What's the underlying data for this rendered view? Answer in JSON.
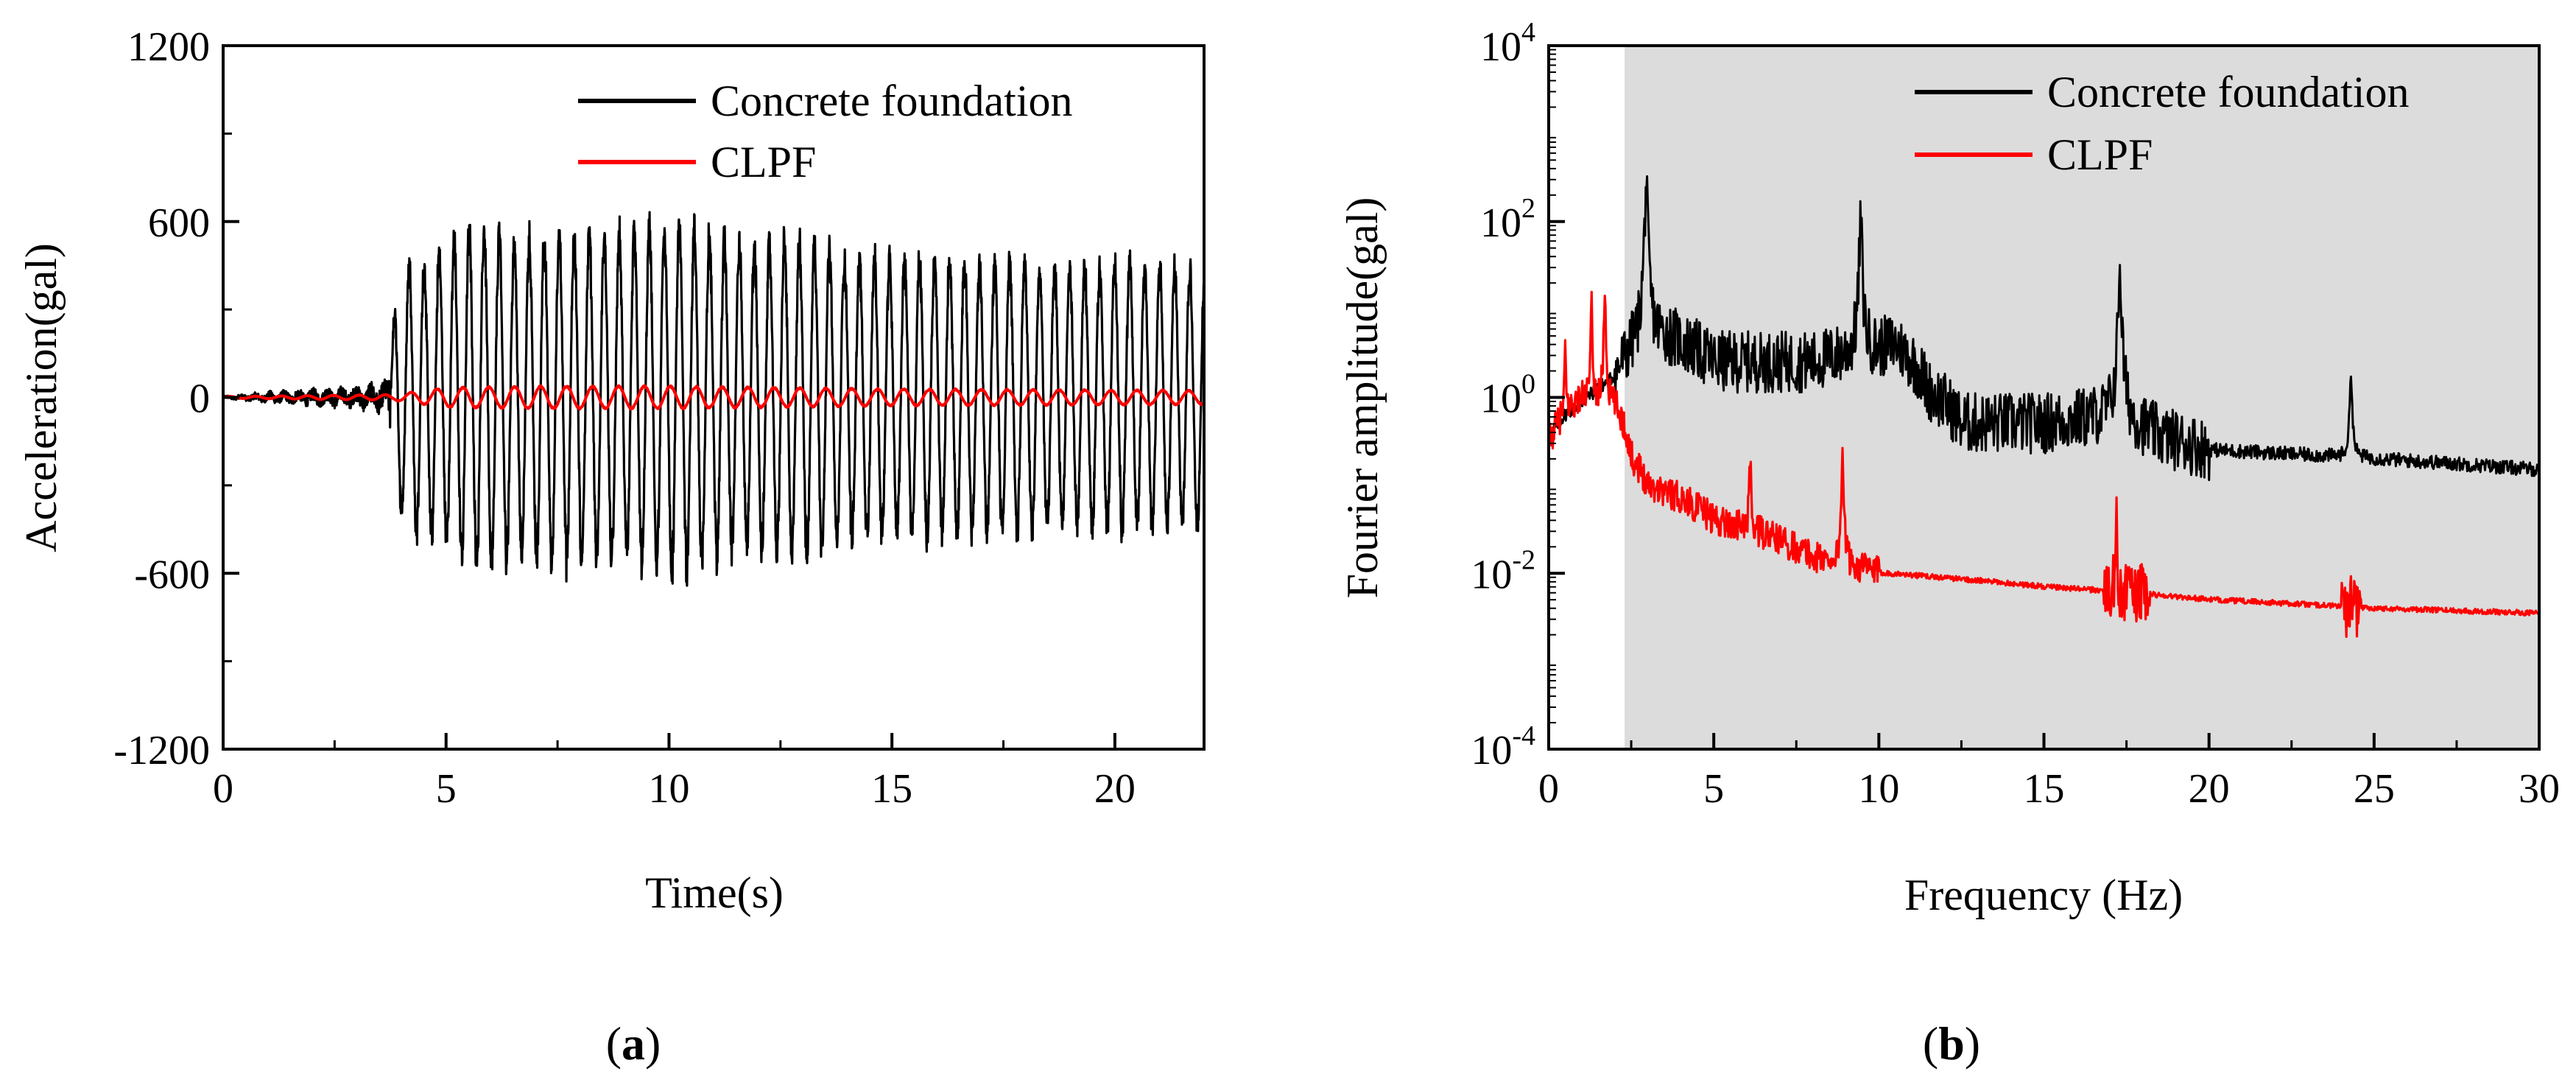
{
  "figure": {
    "panel_labels": [
      "(a)",
      "(b)"
    ],
    "panel_letters": [
      "a",
      "b"
    ]
  },
  "chart_data": [
    {
      "type": "line",
      "panel": "a",
      "title": "",
      "xlabel": "Time(s)",
      "ylabel": "Acceleration(gal)",
      "xlim": [
        0,
        22
      ],
      "ylim": [
        -1200,
        1200
      ],
      "xticks": [
        0,
        5,
        10,
        15,
        20
      ],
      "xtick_labels": [
        "0",
        "5",
        "10",
        "15",
        "20"
      ],
      "yticks": [
        -1200,
        -600,
        0,
        600,
        1200
      ],
      "ytick_labels": [
        "-1200",
        "-600",
        "0",
        "600",
        "1200"
      ],
      "grid": false,
      "legend_position": "top-right",
      "series": [
        {
          "name": "Concrete foundation",
          "color": "#000000",
          "description_points": {
            "t": [
              0,
              1,
              2,
              3,
              3.7,
              3.9,
              4.2,
              4.5,
              5,
              5.7,
              6.5,
              7.3,
              8.3,
              9.1,
              10.0,
              11.0,
              12,
              13,
              14,
              15,
              16,
              17,
              18,
              19,
              20,
              21,
              22
            ],
            "envelope": [
              5,
              20,
              30,
              40,
              60,
              400,
              520,
              500,
              560,
              650,
              580,
              620,
              610,
              600,
              650,
              600,
              560,
              600,
              520,
              520,
              520,
              500,
              500,
              480,
              500,
              490,
              480
            ]
          }
        },
        {
          "name": "CLPF",
          "color": "#ff0000",
          "description_points": {
            "t": [
              0,
              3.8,
              5,
              7,
              10,
              15,
              22
            ],
            "envelope": [
              3,
              10,
              35,
              40,
              40,
              30,
              25
            ]
          }
        }
      ]
    },
    {
      "type": "line",
      "panel": "b",
      "title": "",
      "xlabel": "Frequency (Hz)",
      "ylabel": "Fourier amplitude(gal)",
      "xlim": [
        0,
        30
      ],
      "ylim": [
        0.0001,
        10000
      ],
      "yscale": "log",
      "xticks": [
        0,
        5,
        10,
        15,
        20,
        25,
        30
      ],
      "xtick_labels": [
        "0",
        "5",
        "10",
        "15",
        "20",
        "25",
        "30"
      ],
      "yticks": [
        0.0001,
        0.01,
        1,
        100,
        10000
      ],
      "ytick_labels": [
        {
          "base": "10",
          "exp": "-4"
        },
        {
          "base": "10",
          "exp": "-2"
        },
        {
          "base": "10",
          "exp": "0"
        },
        {
          "base": "10",
          "exp": "2"
        },
        {
          "base": "10",
          "exp": "4"
        }
      ],
      "shaded_region": {
        "x_from": 2.3,
        "x_to": 30,
        "color": "#dcdcdc"
      },
      "grid": false,
      "legend_position": "top-right",
      "series": [
        {
          "name": "Concrete foundation",
          "color": "#000000",
          "peaks": [
            {
              "freq": 2.95,
              "amp": 300
            },
            {
              "freq": 9.45,
              "amp": 110
            },
            {
              "freq": 17.3,
              "amp": 35
            },
            {
              "freq": 24.3,
              "amp": 1.8
            }
          ],
          "baseline": {
            "f": [
              0,
              0.5,
              1,
              2,
              2.5,
              3.5,
              5,
              8,
              10,
              10.5,
              11.5,
              12.5,
              15,
              17,
              18.5,
              20,
              25,
              30
            ],
            "amp": [
              0.3,
              0.6,
              0.8,
              1.5,
              3,
              5,
              2.5,
              2.5,
              3.5,
              4,
              1.2,
              0.5,
              0.5,
              0.6,
              0.35,
              0.25,
              0.2,
              0.15
            ]
          }
        },
        {
          "name": "CLPF",
          "color": "#ff0000",
          "peaks": [
            {
              "freq": 0.5,
              "amp": 2.5
            },
            {
              "freq": 1.3,
              "amp": 10
            },
            {
              "freq": 1.7,
              "amp": 18
            },
            {
              "freq": 6.1,
              "amp": 0.2
            },
            {
              "freq": 8.9,
              "amp": 0.3
            },
            {
              "freq": 17.2,
              "amp": 0.03
            }
          ],
          "baseline": {
            "f": [
              0,
              1,
              2,
              2.5,
              3,
              5,
              8,
              10,
              15,
              20,
              25,
              30
            ],
            "amp": [
              0.3,
              1,
              0.8,
              0.2,
              0.1,
              0.04,
              0.015,
              0.01,
              0.007,
              0.005,
              0.004,
              0.0035
            ]
          }
        }
      ]
    }
  ]
}
